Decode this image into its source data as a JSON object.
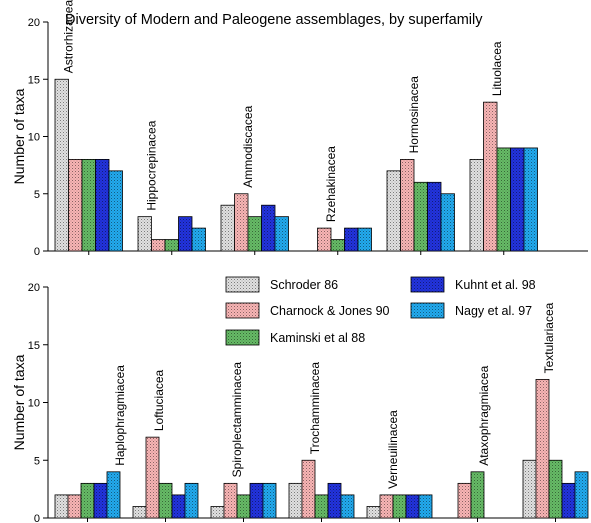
{
  "chart_data": {
    "type": "bar",
    "title": "Diversity of Modern and Paleogene assemblages, by superfamily",
    "ylabel": "Number of taxa",
    "ylim": [
      0,
      20
    ],
    "yticks": [
      "0",
      "5",
      "10",
      "15",
      "20"
    ],
    "grid": false,
    "legend": {
      "placement": "top-right of lower panel",
      "entries": [
        "Schroder 86",
        "Kuhnt et al. 98",
        "Charnock & Jones 90",
        "Nagy et al. 97",
        "Kaminski et al 88"
      ]
    },
    "series": [
      {
        "name": "Schroder 86",
        "color": "#e0e0e0",
        "pattern": "dots"
      },
      {
        "name": "Charnock & Jones 90",
        "color": "#f8b4b4",
        "pattern": "dots"
      },
      {
        "name": "Kaminski et al 88",
        "color": "#66bb66",
        "pattern": "dots"
      },
      {
        "name": "Kuhnt et al. 98",
        "color": "#2233dd",
        "pattern": "dots"
      },
      {
        "name": "Nagy et al. 97",
        "color": "#22aaee",
        "pattern": "dots"
      }
    ],
    "panels": [
      {
        "categories": [
          "Astrorhizacea",
          "Hippocrepinacea",
          "Ammodiscacea",
          "Rzehakinacea",
          "Hormosinacea",
          "Lituolacea"
        ],
        "values": [
          [
            15,
            8,
            8,
            8,
            7
          ],
          [
            3,
            1,
            1,
            3,
            2
          ],
          [
            4,
            5,
            3,
            4,
            3
          ],
          [
            0,
            2,
            1,
            2,
            2
          ],
          [
            7,
            8,
            6,
            6,
            5
          ],
          [
            8,
            13,
            9,
            9,
            9
          ]
        ]
      },
      {
        "categories": [
          "Haplophragmiacea",
          "Loftuciacea",
          "Spiroplectamminacea",
          "Trochamminacea",
          "Verneuilinacea",
          "Ataxophragmiacea",
          "Textulariacea"
        ],
        "values": [
          [
            2,
            2,
            3,
            3,
            4
          ],
          [
            1,
            7,
            3,
            2,
            3
          ],
          [
            1,
            3,
            2,
            3,
            3
          ],
          [
            3,
            5,
            2,
            3,
            2
          ],
          [
            1,
            2,
            2,
            2,
            2
          ],
          [
            0,
            3,
            4,
            0,
            0
          ],
          [
            5,
            12,
            5,
            3,
            4
          ]
        ]
      }
    ]
  }
}
